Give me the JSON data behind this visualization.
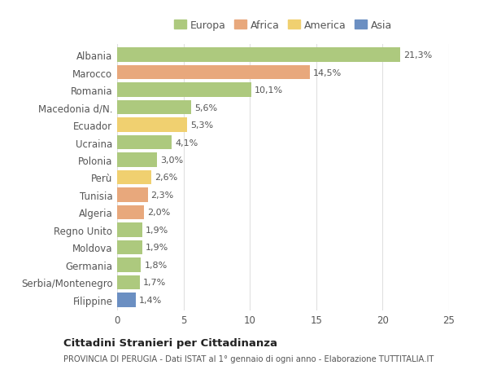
{
  "countries": [
    "Albania",
    "Marocco",
    "Romania",
    "Macedonia d/N.",
    "Ecuador",
    "Ucraina",
    "Polonia",
    "Perù",
    "Tunisia",
    "Algeria",
    "Regno Unito",
    "Moldova",
    "Germania",
    "Serbia/Montenegro",
    "Filippine"
  ],
  "values": [
    21.3,
    14.5,
    10.1,
    5.6,
    5.3,
    4.1,
    3.0,
    2.6,
    2.3,
    2.0,
    1.9,
    1.9,
    1.8,
    1.7,
    1.4
  ],
  "labels": [
    "21,3%",
    "14,5%",
    "10,1%",
    "5,6%",
    "5,3%",
    "4,1%",
    "3,0%",
    "2,6%",
    "2,3%",
    "2,0%",
    "1,9%",
    "1,9%",
    "1,8%",
    "1,7%",
    "1,4%"
  ],
  "continents": [
    "Europa",
    "Africa",
    "Europa",
    "Europa",
    "America",
    "Europa",
    "Europa",
    "America",
    "Africa",
    "Africa",
    "Europa",
    "Europa",
    "Europa",
    "Europa",
    "Asia"
  ],
  "colors": {
    "Europa": "#adc97e",
    "Africa": "#e8a87c",
    "America": "#f0d070",
    "Asia": "#6b8fc2"
  },
  "xlim": [
    0,
    25
  ],
  "xticks": [
    0,
    5,
    10,
    15,
    20,
    25
  ],
  "title": "Cittadini Stranieri per Cittadinanza",
  "subtitle": "PROVINCIA DI PERUGIA - Dati ISTAT al 1° gennaio di ogni anno - Elaborazione TUTTITALIA.IT",
  "bg_color": "#ffffff",
  "grid_color": "#e0e0e0",
  "bar_height": 0.82
}
